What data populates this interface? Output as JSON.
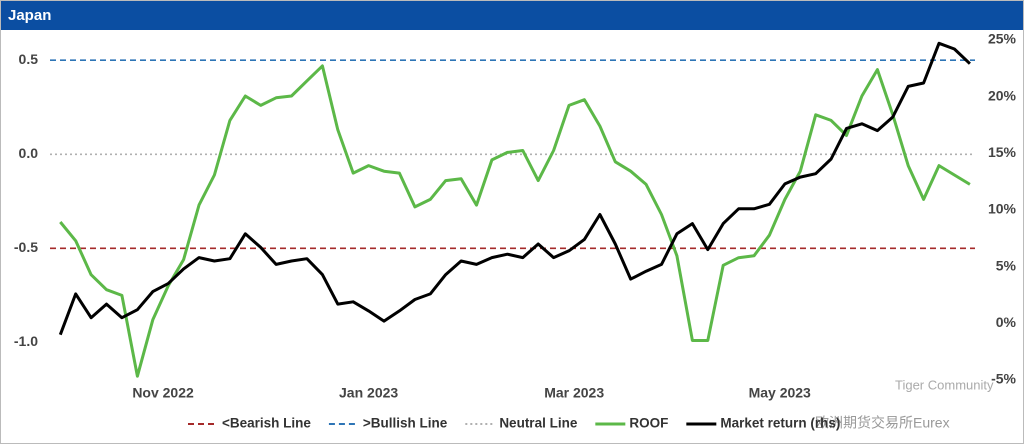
{
  "chart_data": {
    "type": "line",
    "title": "Japan",
    "x": [
      0,
      0.15,
      0.3,
      0.45,
      0.6,
      0.75,
      0.9,
      1.05,
      1.2,
      1.35,
      1.5,
      1.65,
      1.8,
      1.95,
      2.1,
      2.25,
      2.4,
      2.55,
      2.7,
      2.85,
      3,
      3.15,
      3.3,
      3.45,
      3.6,
      3.75,
      3.9,
      4.05,
      4.2,
      4.35,
      4.5,
      4.65,
      4.8,
      4.95,
      5.1,
      5.25,
      5.4,
      5.55,
      5.7,
      5.85,
      6,
      6.15,
      6.3,
      6.45,
      6.6,
      6.75,
      6.9,
      7.05,
      7.2,
      7.35,
      7.5,
      7.65,
      7.8,
      7.95,
      8.1,
      8.25,
      8.4,
      8.55,
      8.7,
      8.85
    ],
    "xlim": [
      -0.1,
      8.9
    ],
    "xticks": [
      {
        "value": 1,
        "label": "Nov 2022"
      },
      {
        "value": 3,
        "label": "Jan 2023"
      },
      {
        "value": 5,
        "label": "Mar 2023"
      },
      {
        "value": 7,
        "label": "May 2023"
      }
    ],
    "ylim": [
      -1.2,
      0.65
    ],
    "yticks": [
      {
        "value": -1,
        "label": "-1.0"
      },
      -0.5,
      {
        "value": 0,
        "label": "0.0"
      },
      0.5
    ],
    "y2lim": [
      -5,
      25.7
    ],
    "y2ticks": [
      {
        "value": -5,
        "label": "-5%"
      },
      {
        "value": 0,
        "label": "0%"
      },
      {
        "value": 5,
        "label": "5%"
      },
      {
        "value": 10,
        "label": "10%"
      },
      {
        "value": 15,
        "label": "15%"
      },
      {
        "value": 20,
        "label": "20%"
      },
      {
        "value": 25,
        "label": "25%"
      }
    ],
    "reference_lines": [
      {
        "name": "<Bearish Line",
        "value": -0.5,
        "color": "#a52a2a",
        "dash": "6,4"
      },
      {
        "name": ">Bullish Line",
        "value": 0.5,
        "color": "#2e75b6",
        "dash": "6,4"
      },
      {
        "name": "Neutral Line",
        "value": 0,
        "color": "#b0b0b0",
        "dash": "2,3"
      }
    ],
    "series": [
      {
        "name": "ROOF",
        "color": "#5cb848",
        "values": [
          -0.36,
          -0.46,
          -0.64,
          -0.72,
          -0.75,
          -1.18,
          -0.88,
          -0.7,
          -0.56,
          -0.27,
          -0.11,
          0.18,
          0.31,
          0.26,
          0.3,
          0.31,
          0.39,
          0.47,
          0.13,
          -0.1,
          -0.06,
          -0.09,
          -0.1,
          -0.28,
          -0.24,
          -0.14,
          -0.13,
          -0.27,
          -0.03,
          0.01,
          0.02,
          -0.14,
          0.02,
          0.26,
          0.29,
          0.15,
          -0.04,
          -0.09,
          -0.16,
          -0.32,
          -0.54,
          -0.99,
          -0.99,
          -0.59,
          -0.55,
          -0.54,
          -0.43,
          -0.24,
          -0.09,
          0.21,
          0.18,
          0.1,
          0.31,
          0.45,
          0.21,
          -0.06,
          -0.24,
          -0.06,
          -0.11,
          -0.16
        ]
      },
      {
        "name": "Market return (rhs)",
        "color": "#000000",
        "axis": "y2",
        "values": [
          -1.0,
          2.6,
          0.5,
          1.7,
          0.5,
          1.2,
          2.8,
          3.5,
          4.8,
          5.8,
          5.5,
          5.7,
          7.9,
          6.7,
          5.2,
          5.5,
          5.7,
          4.3,
          1.7,
          1.9,
          1.1,
          0.2,
          1.1,
          2.1,
          2.6,
          4.3,
          5.5,
          5.2,
          5.8,
          6.1,
          5.8,
          7.0,
          5.8,
          6.4,
          7.4,
          9.6,
          7.0,
          3.9,
          4.6,
          5.2,
          7.9,
          8.8,
          6.5,
          8.8,
          10.1,
          10.1,
          10.5,
          12.3,
          12.9,
          13.2,
          14.5,
          17.2,
          17.6,
          17.0,
          18.2,
          20.9,
          21.2,
          24.7,
          24.2,
          22.9
        ]
      }
    ],
    "watermark": [
      "Tiger Community",
      "欧洲期货交易所Eurex"
    ]
  }
}
